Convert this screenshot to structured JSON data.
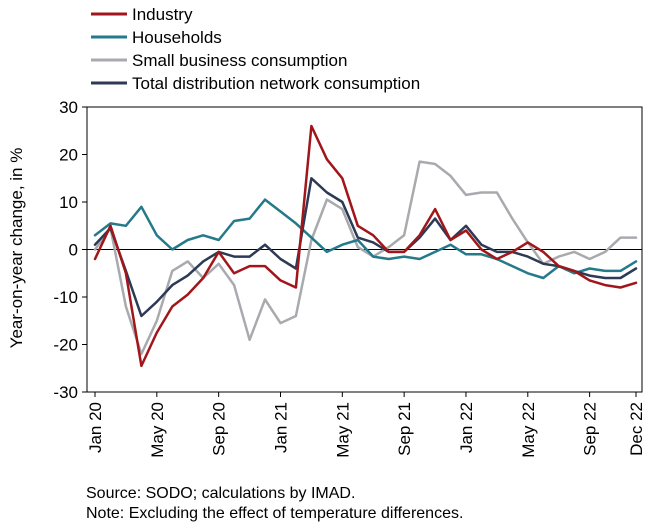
{
  "chart_data": {
    "type": "line",
    "title": "",
    "xlabel": "",
    "ylabel": "Year-on-year change, in %",
    "ylim": [
      -30,
      30
    ],
    "yticks": [
      30,
      20,
      10,
      0,
      -10,
      -20,
      -30
    ],
    "x_tick_labels": [
      "Jan 20",
      "May 20",
      "Sep 20",
      "Jan 21",
      "May 21",
      "Sep 21",
      "Jan 22",
      "May 22",
      "Sep 22",
      "Dec 22"
    ],
    "x": [
      "Jan 20",
      "Feb 20",
      "Mar 20",
      "Apr 20",
      "May 20",
      "Jun 20",
      "Jul 20",
      "Aug 20",
      "Sep 20",
      "Oct 20",
      "Nov 20",
      "Dec 20",
      "Jan 21",
      "Feb 21",
      "Mar 21",
      "Apr 21",
      "May 21",
      "Jun 21",
      "Jul 21",
      "Aug 21",
      "Sep 21",
      "Oct 21",
      "Nov 21",
      "Dec 21",
      "Jan 22",
      "Feb 22",
      "Mar 22",
      "Apr 22",
      "May 22",
      "Jun 22",
      "Jul 22",
      "Aug 22",
      "Sep 22",
      "Oct 22",
      "Nov 22",
      "Dec 22"
    ],
    "legend_position": "top-left",
    "grid": false,
    "series": [
      {
        "name": "Industry",
        "color": "#a0161b",
        "values": [
          -2,
          5,
          -5,
          -24.5,
          -17.5,
          -12,
          -9.5,
          -6,
          -0.5,
          -5,
          -3.5,
          -3.5,
          -6.5,
          -8,
          26,
          19,
          15,
          5,
          3,
          -0.5,
          -0.5,
          3,
          8.5,
          2,
          4,
          0,
          -2,
          -0.5,
          1.5,
          -0.5,
          -3.5,
          -4.5,
          -6.5,
          -7.5,
          -8,
          -7
        ]
      },
      {
        "name": "Households",
        "color": "#24798a",
        "values": [
          3,
          5.5,
          5,
          9,
          3,
          0,
          2,
          3,
          2,
          6,
          6.5,
          10.5,
          8,
          5.5,
          2.5,
          -0.5,
          1,
          2,
          -1.5,
          -2,
          -1.5,
          -2,
          -0.5,
          1,
          -1,
          -1,
          -2,
          -3.5,
          -5,
          -6,
          -3.5,
          -5,
          -4,
          -4.5,
          -4.5,
          -2.5
        ]
      },
      {
        "name": "Small business consumption",
        "color": "#a9aaae",
        "values": [
          0,
          4.5,
          -12,
          -22,
          -15,
          -4.5,
          -2.5,
          -6,
          -3,
          -7.5,
          -19,
          -10.5,
          -15.5,
          -14,
          2,
          10.5,
          8.5,
          0.5,
          -1.5,
          0.5,
          3,
          18.5,
          18,
          15.5,
          11.5,
          12,
          12,
          6.5,
          1.5,
          -3,
          -1.5,
          -0.5,
          -2,
          -0.5,
          2.5,
          2.5
        ]
      },
      {
        "name": "Total distribution network consumption",
        "color": "#2d3a55",
        "values": [
          1,
          4.5,
          -4.5,
          -14,
          -11,
          -7.5,
          -5.5,
          -2.5,
          -0.5,
          -1.5,
          -1.5,
          1,
          -2,
          -4,
          15,
          12,
          10,
          2.5,
          1.5,
          -0.5,
          -0.5,
          2.5,
          6.5,
          2,
          5,
          1,
          -0.5,
          -0.5,
          -1.5,
          -3,
          -3.5,
          -4.5,
          -5.5,
          -6,
          -6,
          -4
        ]
      }
    ]
  },
  "notes": {
    "source": "Source: SODO; calculations by IMAD.",
    "temperature": "Note: Excluding the effect of temperature differences."
  }
}
